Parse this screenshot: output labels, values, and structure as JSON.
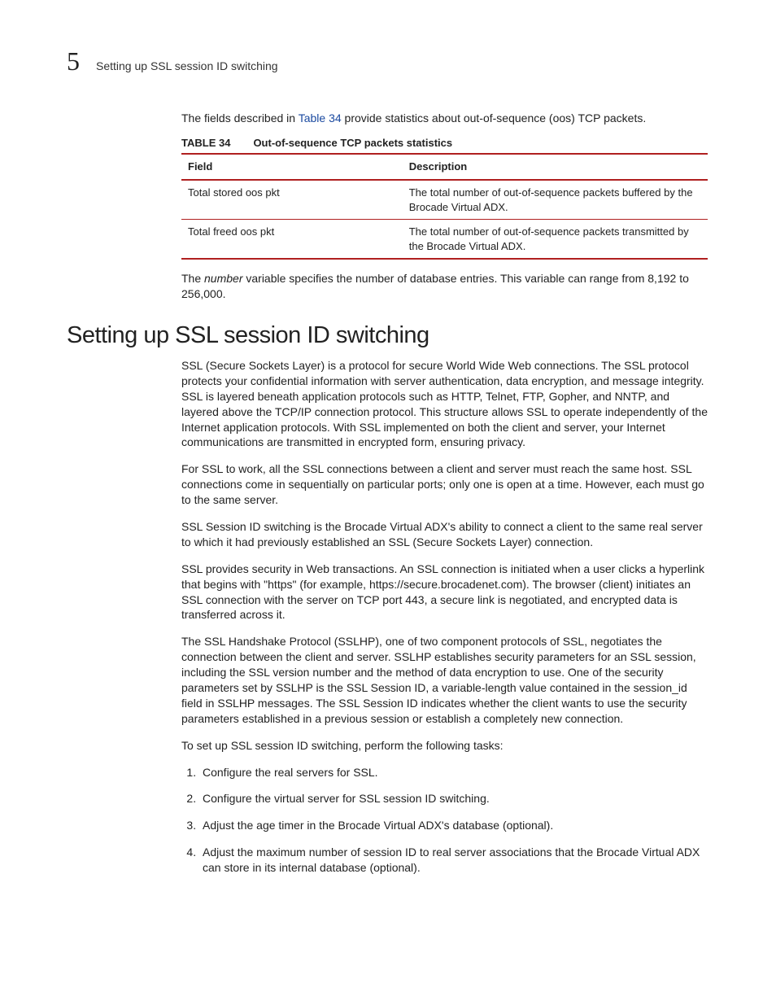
{
  "header": {
    "chapter_number": "5",
    "title": "Setting up SSL session ID switching"
  },
  "intro": {
    "text_before_ref": "The fields described in ",
    "ref": "Table 34",
    "text_after_ref": " provide statistics about out-of-sequence (oos) TCP packets."
  },
  "table": {
    "caption_label": "TABLE 34",
    "caption_text": "Out-of-sequence TCP packets statistics",
    "header_field": "Field",
    "header_desc": "Description",
    "rows": [
      {
        "field": "Total stored oos pkt",
        "desc": "The total number of out-of-sequence packets buffered by the Brocade Virtual ADX."
      },
      {
        "field": "Total freed oos pkt",
        "desc": "The total number of out-of-sequence packets transmitted by the Brocade Virtual ADX."
      }
    ]
  },
  "after_table": {
    "a": "The ",
    "var": "number",
    "b": " variable specifies the number of database entries. This variable can range from 8,192 to 256,000."
  },
  "section": {
    "heading": "Setting up SSL session ID switching",
    "p1": "SSL (Secure Sockets Layer) is a protocol for secure World Wide Web connections. The SSL protocol protects your confidential information with server authentication, data encryption, and message integrity. SSL is layered beneath application protocols such as HTTP, Telnet, FTP, Gopher, and NNTP, and layered above the TCP/IP connection protocol. This structure allows SSL to operate independently of the Internet application protocols. With SSL implemented on both the client and server, your Internet communications are transmitted in encrypted form, ensuring privacy.",
    "p2": "For SSL to work, all the SSL connections between a client and server must reach the same host. SSL connections come in sequentially on particular ports; only one is open at a time. However, each must go to the same server.",
    "p3": "SSL Session ID switching is the Brocade Virtual ADX's ability to connect a client to the same real server to which it had previously established an SSL (Secure Sockets Layer) connection.",
    "p4": "SSL provides security in Web transactions. An SSL connection is initiated when a user clicks a hyperlink that begins with \"https\" (for example, https://secure.brocadenet.com). The browser (client) initiates an SSL connection with the server on TCP port 443, a secure link is negotiated, and encrypted data is transferred across it.",
    "p5": "The SSL Handshake Protocol (SSLHP), one of two component protocols of SSL, negotiates the connection between the client and server. SSLHP establishes security parameters for an SSL session, including the SSL version number and the method of data encryption to use. One of the security parameters set by SSLHP is the SSL Session ID, a variable-length value contained in the session_id field in SSLHP messages. The SSL Session ID indicates whether the client wants to use the security parameters established in a previous session or establish a completely new connection.",
    "p6": "To set up SSL session ID switching, perform the following tasks:",
    "steps": [
      "Configure the real servers for SSL.",
      "Configure the virtual server for SSL session ID switching.",
      "Adjust the age timer in the Brocade Virtual ADX's database (optional).",
      "Adjust the maximum number of session ID to real server associations that the Brocade Virtual ADX can store in its internal database (optional)."
    ]
  }
}
